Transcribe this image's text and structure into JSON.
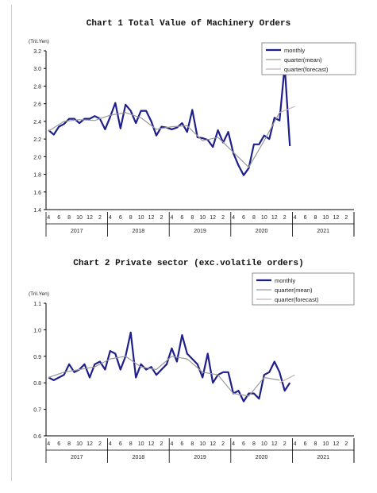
{
  "chart_data": [
    {
      "type": "line",
      "title": "Chart 1 Total Value of Machinery Orders",
      "ylabel": "(Tril.Yen)",
      "ylim": [
        1.4,
        3.2
      ],
      "yticks": [
        "1.4",
        "1.6",
        "1.8",
        "2.0",
        "2.2",
        "2.4",
        "2.6",
        "2.8",
        "3.0",
        "3.2"
      ],
      "month_ticks": [
        "4",
        "6",
        "8",
        "10",
        "12",
        "2",
        "4",
        "6",
        "8",
        "10",
        "12",
        "2",
        "4",
        "6",
        "8",
        "10",
        "12",
        "2",
        "4",
        "6",
        "8",
        "10",
        "12",
        "2",
        "4",
        "6",
        "8",
        "10",
        "12",
        "2"
      ],
      "years": [
        "2017",
        "2018",
        "2019",
        "2020",
        "2021"
      ],
      "legend": [
        "monthly",
        "quarter(mean)",
        "quarter(forecast)"
      ],
      "colors": {
        "monthly": "#1f1f8c",
        "mean": "#9a9a9a",
        "forecast": "#c8b4b4"
      },
      "series": [
        {
          "name": "monthly",
          "values": [
            2.3,
            2.25,
            2.34,
            2.37,
            2.43,
            2.43,
            2.38,
            2.43,
            2.43,
            2.46,
            2.43,
            2.31,
            2.45,
            2.61,
            2.32,
            2.59,
            2.52,
            2.38,
            2.52,
            2.52,
            2.4,
            2.24,
            2.34,
            2.33,
            2.31,
            2.33,
            2.38,
            2.28,
            2.53,
            2.22,
            2.21,
            2.19,
            2.11,
            2.3,
            2.16,
            2.28,
            2.04,
            1.9,
            1.79,
            1.87,
            2.14,
            2.14,
            2.24,
            2.2,
            2.44,
            2.41,
            3.03,
            2.12
          ]
        },
        {
          "name": "quarter(mean)",
          "values": [
            2.29,
            null,
            null,
            2.4,
            null,
            null,
            2.42,
            null,
            null,
            2.41,
            null,
            null,
            2.47,
            null,
            null,
            2.5,
            null,
            null,
            2.44,
            null,
            null,
            2.31,
            null,
            null,
            2.34,
            null,
            null,
            2.35,
            null,
            null,
            2.18,
            null,
            null,
            2.22,
            null,
            null,
            2.05,
            null,
            null,
            1.88,
            null,
            null,
            2.18,
            null,
            null,
            2.5,
            null,
            null
          ]
        },
        {
          "name": "quarter(forecast)",
          "values": [
            null,
            null,
            null,
            null,
            null,
            null,
            null,
            null,
            null,
            null,
            null,
            null,
            null,
            null,
            null,
            null,
            null,
            null,
            null,
            null,
            null,
            null,
            null,
            null,
            null,
            null,
            null,
            null,
            null,
            null,
            null,
            null,
            null,
            null,
            null,
            null,
            null,
            null,
            null,
            null,
            null,
            null,
            null,
            null,
            null,
            2.5,
            null,
            null,
            2.57
          ]
        }
      ]
    },
    {
      "type": "line",
      "title": "Chart 2 Private sector (exc.volatile orders)",
      "ylabel": "(Tril.Yen)",
      "ylim": [
        0.6,
        1.1
      ],
      "yticks": [
        "0.6",
        "0.7",
        "0.8",
        "0.9",
        "1.0",
        "1.1"
      ],
      "month_ticks": [
        "4",
        "6",
        "8",
        "10",
        "12",
        "2",
        "4",
        "6",
        "8",
        "10",
        "12",
        "2",
        "4",
        "6",
        "8",
        "10",
        "12",
        "2",
        "4",
        "6",
        "8",
        "10",
        "12",
        "2",
        "4",
        "6",
        "8",
        "10",
        "12",
        "2"
      ],
      "years": [
        "2017",
        "2018",
        "2019",
        "2020",
        "2021"
      ],
      "legend": [
        "monthly",
        "quarter(mean)",
        "quarter(forecast)"
      ],
      "colors": {
        "monthly": "#1f1f8c",
        "mean": "#9a9a9a",
        "forecast": "#c8b4b4"
      },
      "series": [
        {
          "name": "monthly",
          "values": [
            0.82,
            0.81,
            0.82,
            0.83,
            0.87,
            0.84,
            0.85,
            0.87,
            0.82,
            0.87,
            0.88,
            0.85,
            0.92,
            0.91,
            0.85,
            0.9,
            0.99,
            0.82,
            0.87,
            0.85,
            0.86,
            0.83,
            0.85,
            0.87,
            0.93,
            0.88,
            0.98,
            0.91,
            0.89,
            0.87,
            0.82,
            0.91,
            0.8,
            0.83,
            0.84,
            0.84,
            0.76,
            0.77,
            0.73,
            0.76,
            0.76,
            0.74,
            0.83,
            0.84,
            0.88,
            0.84,
            0.77,
            0.8
          ]
        },
        {
          "name": "quarter(mean)",
          "values": [
            0.82,
            null,
            null,
            0.84,
            null,
            null,
            0.85,
            null,
            null,
            0.86,
            null,
            null,
            0.89,
            null,
            null,
            0.9,
            null,
            null,
            0.86,
            null,
            null,
            0.85,
            null,
            null,
            0.9,
            null,
            null,
            0.89,
            null,
            null,
            0.84,
            null,
            null,
            0.83,
            null,
            null,
            0.76,
            null,
            null,
            0.75,
            null,
            null,
            0.82,
            null,
            null,
            0.81,
            null,
            null
          ]
        },
        {
          "name": "quarter(forecast)",
          "values": [
            null,
            null,
            null,
            null,
            null,
            null,
            null,
            null,
            null,
            null,
            null,
            null,
            null,
            null,
            null,
            null,
            null,
            null,
            null,
            null,
            null,
            null,
            null,
            null,
            null,
            null,
            null,
            null,
            null,
            null,
            null,
            null,
            null,
            null,
            null,
            null,
            null,
            null,
            null,
            null,
            null,
            null,
            null,
            null,
            null,
            0.8,
            null,
            null,
            0.83
          ]
        }
      ]
    }
  ]
}
